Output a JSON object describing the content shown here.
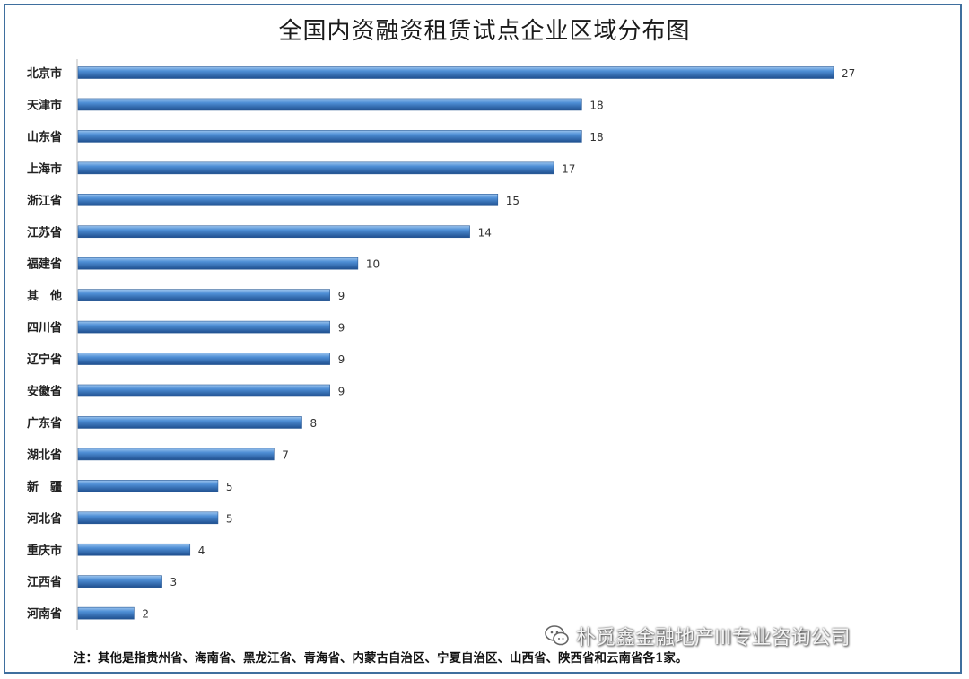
{
  "chart_data": {
    "type": "bar",
    "orientation": "horizontal",
    "title": "全国内资融资租赁试点企业区域分布图",
    "categories": [
      "北京市",
      "天津市",
      "山东省",
      "上海市",
      "浙江省",
      "江苏省",
      "福建省",
      "其　他",
      "四川省",
      "辽宁省",
      "安徽省",
      "广东省",
      "湖北省",
      "新　疆",
      "河北省",
      "重庆市",
      "江西省",
      "河南省"
    ],
    "values": [
      27,
      18,
      18,
      17,
      15,
      14,
      10,
      9,
      9,
      9,
      9,
      8,
      7,
      5,
      5,
      4,
      3,
      2
    ],
    "xlim": [
      0,
      27
    ],
    "grid": false,
    "legend": "none",
    "bar_color": "#3f7ec4"
  },
  "note": "注：其他是指贵州省、海南省、黑龙江省、青海省、内蒙古自治区、宁夏自治区、山西省、陕西省和云南省各1家。",
  "watermark": {
    "text": "朴觅鑫金融地产III专业咨询公司",
    "icon": "wechat-icon"
  }
}
